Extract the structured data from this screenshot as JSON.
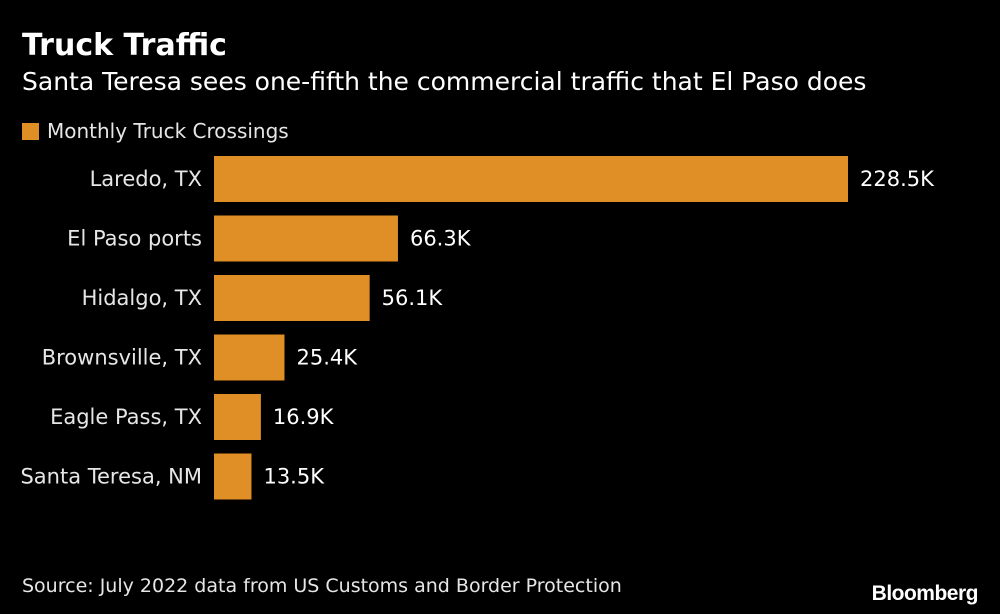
{
  "header": {
    "title": "Truck Traffic",
    "subtitle": "Santa Teresa sees one-fifth the commercial traffic that El Paso does"
  },
  "legend": {
    "label": "Monthly Truck Crossings"
  },
  "footer": {
    "source": "Source: July 2022 data from US Customs and Border Protection",
    "brand": "Bloomberg"
  },
  "colors": {
    "background": "#000000",
    "bar": "#e08e26",
    "text": "#ffffff",
    "muted_text": "#e6e6e6"
  },
  "chart_data": {
    "type": "bar",
    "orientation": "horizontal",
    "title": "Truck Traffic",
    "subtitle": "Santa Teresa sees one-fifth the commercial traffic that El Paso does",
    "xlabel": "",
    "ylabel": "",
    "grid": false,
    "legend_position": "top-left",
    "units": "K",
    "xlim": [
      0,
      228.5
    ],
    "categories": [
      "Laredo, TX",
      "El Paso ports",
      "Hidalgo, TX",
      "Brownsville, TX",
      "Eagle Pass, TX",
      "Santa Teresa, NM"
    ],
    "series": [
      {
        "name": "Monthly Truck Crossings",
        "values": [
          228.5,
          66.3,
          56.1,
          25.4,
          16.9,
          13.5
        ],
        "labels": [
          "228.5K",
          "66.3K",
          "56.1K",
          "25.4K",
          "16.9K",
          "13.5K"
        ]
      }
    ]
  }
}
